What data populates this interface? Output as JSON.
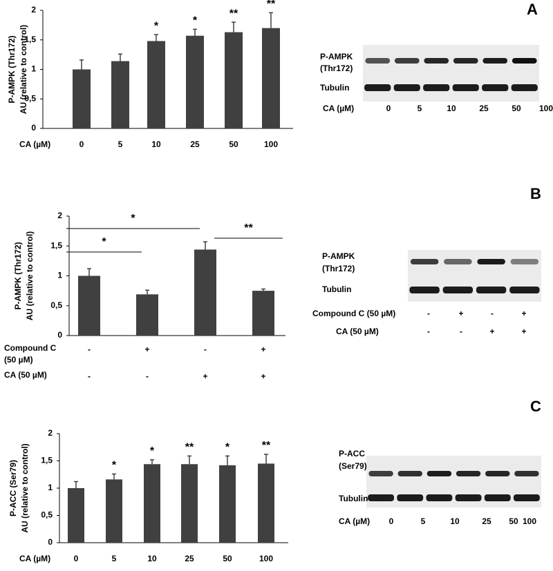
{
  "chart_data": [
    {
      "type": "bar",
      "ylabel": [
        "P-AMPK (Thr172)",
        "AU (relative to control)"
      ],
      "xlabel": "CA (µM)",
      "categories": [
        "0",
        "5",
        "10",
        "25",
        "50",
        "100"
      ],
      "values": [
        1.0,
        1.14,
        1.48,
        1.57,
        1.63,
        1.7
      ],
      "errors": [
        0.16,
        0.12,
        0.11,
        0.11,
        0.17,
        0.26
      ],
      "significance": [
        null,
        null,
        "*",
        "*",
        "**",
        "**"
      ],
      "color": "#404040",
      "ylim": [
        0,
        2
      ],
      "yticks": [
        0,
        {
          "value": 0.5,
          "label": "0,5"
        },
        1,
        {
          "value": 1.5,
          "label": "1,5"
        },
        2
      ]
    },
    {
      "type": "bar",
      "ylabel": [
        "P-AMPK (Thr172)",
        "AU (relative to control)"
      ],
      "treatments": [
        {
          "name": [
            "Compound C",
            "(50 µM)"
          ],
          "signs": [
            "-",
            "+",
            "-",
            "+"
          ]
        },
        {
          "name": [
            "CA (50 µM)"
          ],
          "signs": [
            "-",
            "-",
            "+",
            "+"
          ]
        }
      ],
      "values": [
        1.0,
        0.69,
        1.44,
        0.75
      ],
      "errors": [
        0.12,
        0.07,
        0.13,
        0.03
      ],
      "comparisons": [
        {
          "between": [
            0,
            1
          ],
          "label": "*"
        },
        {
          "between": [
            0,
            2
          ],
          "label": "*"
        },
        {
          "between": [
            2,
            3
          ],
          "label": "**"
        }
      ],
      "color": "#404040",
      "ylim": [
        0,
        2
      ],
      "yticks": [
        0,
        {
          "value": 0.5,
          "label": "0,5"
        },
        1,
        {
          "value": 1.5,
          "label": "1,5"
        },
        2
      ]
    },
    {
      "type": "bar",
      "ylabel": [
        "P-ACC (Ser79)",
        "AU (relative to control)"
      ],
      "xlabel": "CA (µM)",
      "categories": [
        "0",
        "5",
        "10",
        "25",
        "50",
        "100"
      ],
      "values": [
        1.0,
        1.16,
        1.44,
        1.44,
        1.42,
        1.45
      ],
      "errors": [
        0.12,
        0.1,
        0.08,
        0.15,
        0.17,
        0.17
      ],
      "significance": [
        null,
        "*",
        "*",
        "**",
        "*",
        "**"
      ],
      "color": "#404040",
      "ylim": [
        0,
        2
      ],
      "yticks": [
        0,
        {
          "value": 0.5,
          "label": "0,5"
        },
        1,
        {
          "value": 1.5,
          "label": "1,5"
        },
        2
      ]
    }
  ],
  "panel_letters": [
    "A",
    "B",
    "C"
  ],
  "blots": [
    {
      "target": [
        "P-AMPK",
        "(Thr172)"
      ],
      "control": "Tubulin",
      "lane_rows": [
        {
          "name": "CA (µM)",
          "lanes": [
            "0",
            "5",
            "10",
            "25",
            "50",
            "100"
          ]
        }
      ]
    },
    {
      "target": [
        "P-AMPK",
        "(Thr172)"
      ],
      "control": "Tubulin",
      "lane_rows": [
        {
          "name": "Compound C (50 µM)",
          "lanes": [
            "-",
            "+",
            "-",
            "+"
          ]
        },
        {
          "name": "CA (50 µM)",
          "lanes": [
            "-",
            "-",
            "+",
            "+"
          ]
        }
      ]
    },
    {
      "target": [
        "P-ACC",
        "(Ser79)"
      ],
      "control": "Tubulin",
      "lane_rows": [
        {
          "name": "CA (µM)",
          "lanes": [
            "0",
            "5",
            "10",
            "25",
            "50",
            "100"
          ]
        }
      ]
    }
  ]
}
